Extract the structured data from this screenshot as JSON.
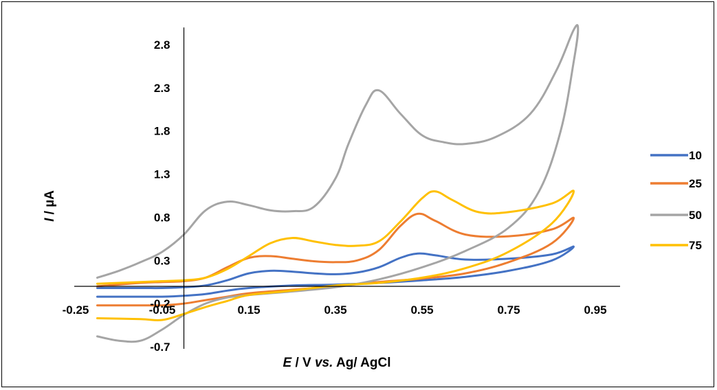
{
  "chart_data": {
    "type": "line",
    "xlabel": {
      "italic": "E",
      "plain": " / V ",
      "italic2": "vs.",
      "plain2": "  Ag/ AgCl"
    },
    "ylabel": {
      "italic": "I",
      "plain": " / µA"
    },
    "xlim": [
      -0.25,
      0.95
    ],
    "ylim": [
      -0.7,
      3.0
    ],
    "x_ticks": [
      "-0.25",
      "-0.05",
      "0.15",
      "0.35",
      "0.55",
      "0.75",
      "0.95"
    ],
    "x_tick_values": [
      -0.25,
      -0.05,
      0.15,
      0.35,
      0.55,
      0.75,
      0.95
    ],
    "y_ticks": [
      "2.8",
      "2.3",
      "1.8",
      "1.3",
      "0.8",
      "0.3",
      "-0.2",
      "-0.7"
    ],
    "y_tick_values": [
      2.8,
      2.3,
      1.8,
      1.3,
      0.8,
      0.3,
      -0.2,
      -0.7
    ],
    "legend_position": "right",
    "grid": false,
    "series": [
      {
        "name": "10",
        "color": "#4472C4",
        "x": [
          -0.2,
          -0.1,
          -0.05,
          0.0,
          0.05,
          0.1,
          0.15,
          0.2,
          0.25,
          0.3,
          0.35,
          0.4,
          0.45,
          0.5,
          0.54,
          0.58,
          0.65,
          0.75,
          0.85,
          0.9,
          0.85,
          0.75,
          0.65,
          0.55,
          0.45,
          0.35,
          0.25,
          0.15,
          0.1,
          0.05,
          0.0,
          -0.05,
          -0.1,
          -0.2
        ],
        "y": [
          -0.02,
          -0.02,
          -0.02,
          -0.01,
          0.01,
          0.07,
          0.15,
          0.18,
          0.17,
          0.15,
          0.14,
          0.16,
          0.22,
          0.33,
          0.38,
          0.36,
          0.31,
          0.32,
          0.37,
          0.46,
          0.3,
          0.18,
          0.11,
          0.07,
          0.04,
          0.02,
          0.01,
          -0.02,
          -0.05,
          -0.09,
          -0.11,
          -0.12,
          -0.12,
          -0.12
        ]
      },
      {
        "name": "25",
        "color": "#ED7D31",
        "x": [
          -0.2,
          -0.1,
          -0.05,
          0.0,
          0.05,
          0.1,
          0.15,
          0.2,
          0.25,
          0.3,
          0.35,
          0.4,
          0.45,
          0.5,
          0.54,
          0.58,
          0.65,
          0.75,
          0.85,
          0.9,
          0.85,
          0.75,
          0.65,
          0.55,
          0.45,
          0.35,
          0.25,
          0.15,
          0.1,
          0.05,
          0.0,
          -0.05,
          -0.1,
          -0.2
        ],
        "y": [
          0.0,
          0.04,
          0.05,
          0.06,
          0.1,
          0.22,
          0.33,
          0.35,
          0.32,
          0.29,
          0.28,
          0.3,
          0.42,
          0.7,
          0.84,
          0.76,
          0.6,
          0.58,
          0.66,
          0.79,
          0.5,
          0.28,
          0.15,
          0.09,
          0.05,
          0.0,
          -0.04,
          -0.08,
          -0.12,
          -0.16,
          -0.2,
          -0.22,
          -0.22,
          -0.22
        ]
      },
      {
        "name": "50",
        "color": "#A5A5A5",
        "x": [
          -0.2,
          -0.15,
          -0.1,
          -0.05,
          0.0,
          0.05,
          0.1,
          0.15,
          0.2,
          0.25,
          0.3,
          0.35,
          0.38,
          0.42,
          0.45,
          0.5,
          0.55,
          0.6,
          0.65,
          0.72,
          0.8,
          0.86,
          0.9,
          0.91,
          0.9,
          0.87,
          0.82,
          0.75,
          0.65,
          0.55,
          0.45,
          0.35,
          0.25,
          0.15,
          0.1,
          0.05,
          0.0,
          -0.05,
          -0.1,
          -0.15,
          -0.2
        ],
        "y": [
          0.1,
          0.18,
          0.28,
          0.4,
          0.6,
          0.88,
          0.98,
          0.94,
          0.88,
          0.87,
          0.92,
          1.25,
          1.65,
          2.1,
          2.27,
          2.0,
          1.75,
          1.67,
          1.65,
          1.73,
          2.0,
          2.5,
          2.97,
          2.97,
          2.6,
          1.8,
          1.1,
          0.68,
          0.41,
          0.22,
          0.08,
          -0.01,
          -0.06,
          -0.1,
          -0.13,
          -0.2,
          -0.33,
          -0.5,
          -0.63,
          -0.63,
          -0.58
        ]
      },
      {
        "name": "75",
        "color": "#FFC000",
        "x": [
          -0.2,
          -0.1,
          -0.05,
          0.0,
          0.05,
          0.1,
          0.15,
          0.2,
          0.25,
          0.3,
          0.35,
          0.4,
          0.45,
          0.5,
          0.55,
          0.58,
          0.62,
          0.68,
          0.75,
          0.85,
          0.9,
          0.85,
          0.75,
          0.65,
          0.55,
          0.45,
          0.35,
          0.25,
          0.15,
          0.1,
          0.05,
          0.0,
          -0.05,
          -0.1,
          -0.2
        ],
        "y": [
          0.03,
          0.05,
          0.06,
          0.07,
          0.1,
          0.2,
          0.35,
          0.5,
          0.56,
          0.52,
          0.48,
          0.47,
          0.52,
          0.75,
          1.02,
          1.1,
          1.0,
          0.86,
          0.86,
          0.96,
          1.1,
          0.73,
          0.4,
          0.21,
          0.1,
          0.04,
          0.01,
          -0.05,
          -0.1,
          -0.17,
          -0.24,
          -0.32,
          -0.39,
          -0.38,
          -0.37
        ]
      }
    ]
  }
}
